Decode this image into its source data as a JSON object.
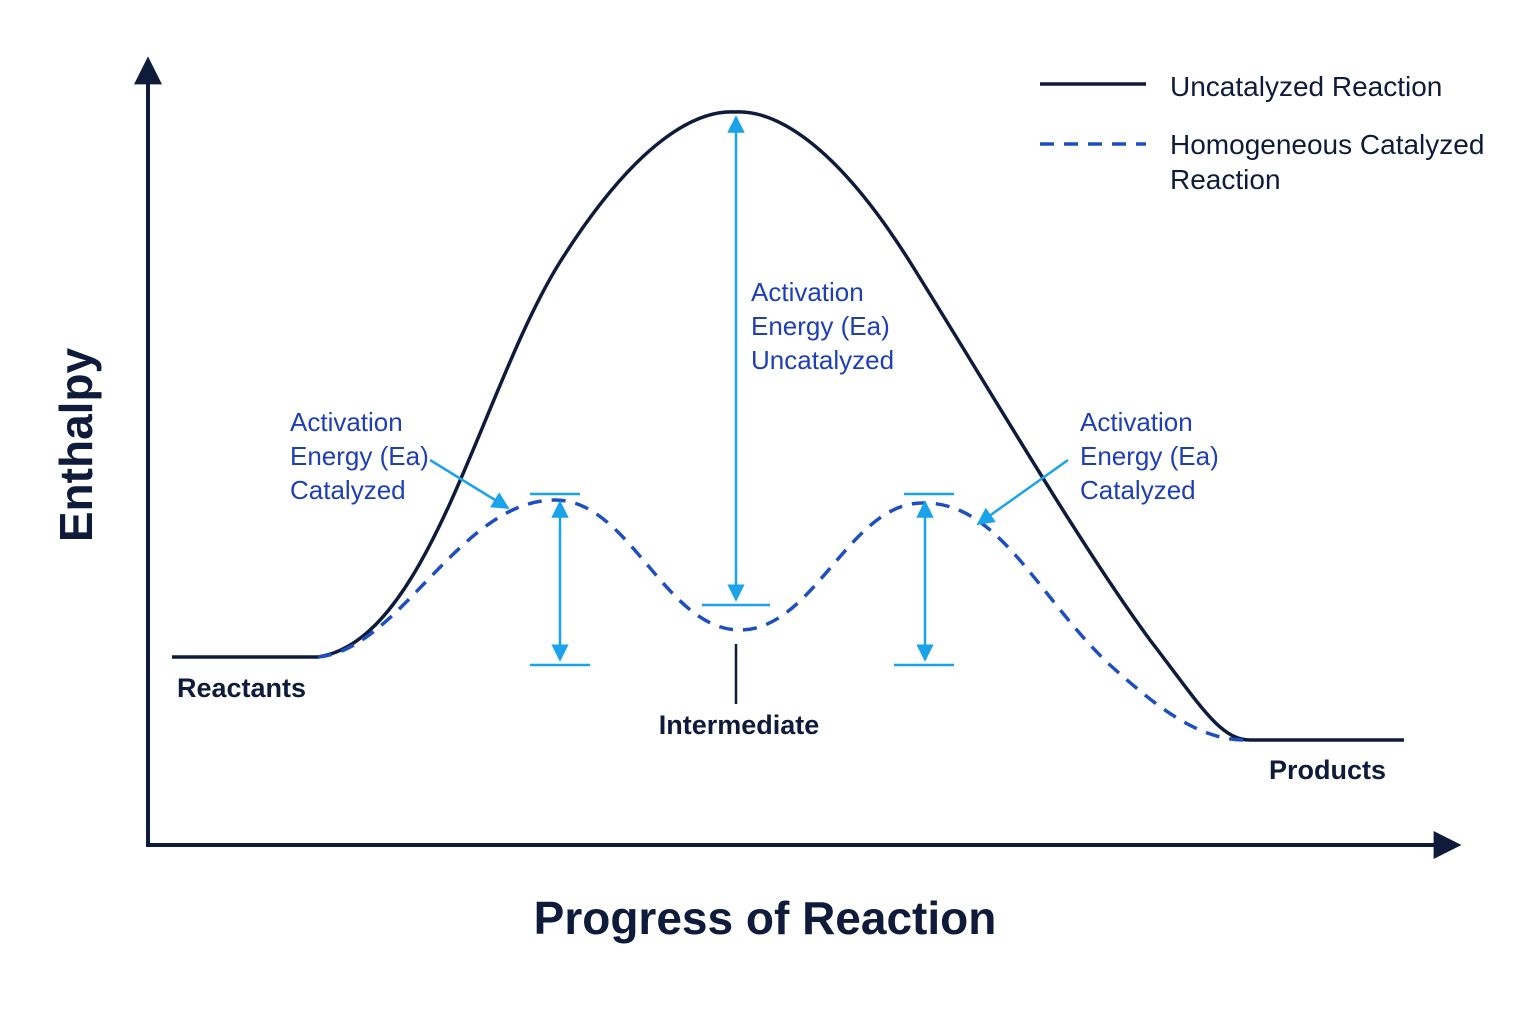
{
  "axes": {
    "x_label": "Progress of Reaction",
    "y_label": "Enthalpy"
  },
  "legend": [
    {
      "label": "Uncatalyzed Reaction",
      "style": "solid",
      "color": "#0f1b3a"
    },
    {
      "label_lines": [
        "Homogeneous Catalyzed",
        "Reaction"
      ],
      "style": "dashed",
      "color": "#1f4fbf"
    }
  ],
  "points": {
    "reactants": "Reactants",
    "intermediate": "Intermediate",
    "products": "Products"
  },
  "annotations": {
    "uncatalyzed": [
      "Activation",
      "Energy (Ea)",
      "Uncatalyzed"
    ],
    "catalyzed_left": [
      "Activation",
      "Energy (Ea)",
      "Catalyzed"
    ],
    "catalyzed_right": [
      "Activation",
      "Energy (Ea)",
      "Catalyzed"
    ]
  },
  "colors": {
    "axis": "#0f1b3a",
    "uncatalyzed_curve": "#0f1b3a",
    "catalyzed_curve": "#1f4fbf",
    "marker": "#1aa3e8",
    "label_blue": "#1f3fb5"
  }
}
